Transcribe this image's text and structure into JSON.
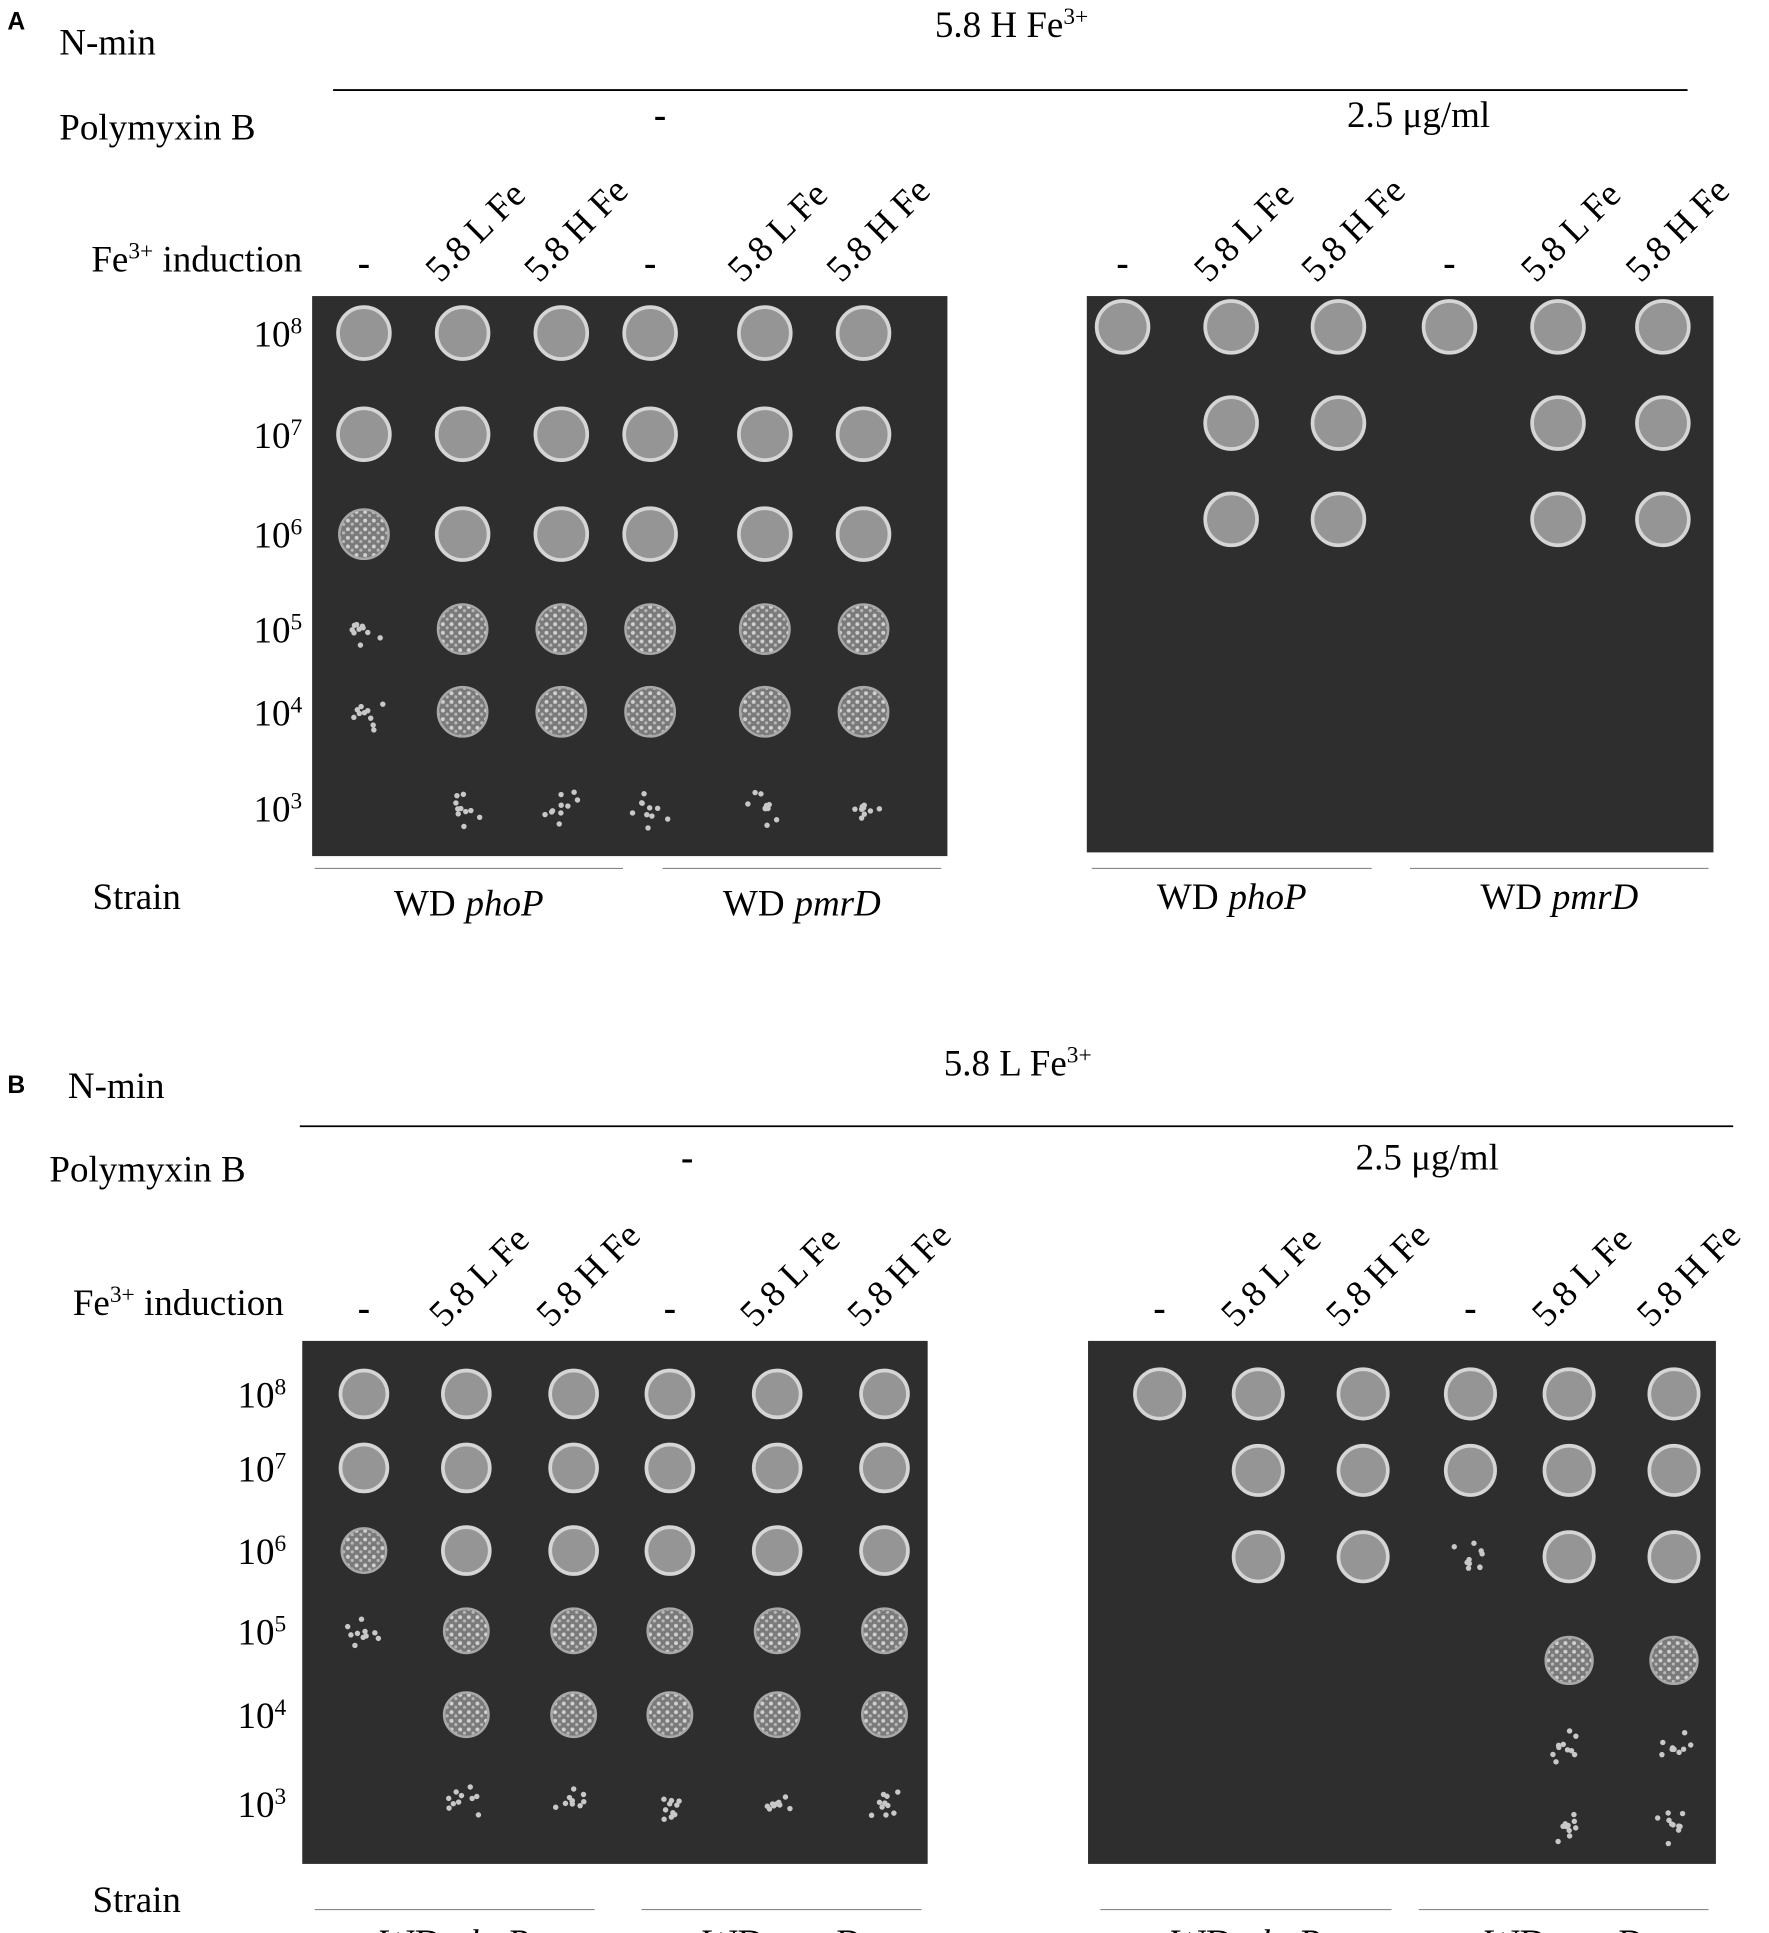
{
  "panels": [
    {
      "label": "A",
      "medium": "N-min",
      "condition": {
        "text": "5.8 H Fe",
        "sup": "3+"
      },
      "polymyxin_label": "Polymyxin B",
      "induction_label": {
        "text": "Fe",
        "sup": "3+",
        "rest": " induction"
      },
      "dilutions": [
        {
          "base": "10",
          "exp": "8"
        },
        {
          "base": "10",
          "exp": "7"
        },
        {
          "base": "10",
          "exp": "6"
        },
        {
          "base": "10",
          "exp": "5"
        },
        {
          "base": "10",
          "exp": "4"
        },
        {
          "base": "10",
          "exp": "3"
        }
      ],
      "strain_label": "Strain",
      "plates": [
        {
          "polymyxin": "-",
          "columns": [
            "-",
            "5.8 L Fe",
            "5.8 H Fe",
            "-",
            "5.8 L Fe",
            "5.8 H Fe"
          ],
          "strains": [
            {
              "prefix": "WD",
              "gene": "phoP"
            },
            {
              "prefix": "WD",
              "gene": "pmrD"
            }
          ]
        },
        {
          "polymyxin": "2.5 μg/ml",
          "columns": [
            "-",
            "5.8 L Fe",
            "5.8 H Fe",
            "-",
            "5.8 L Fe",
            "5.8 H Fe"
          ],
          "strains": [
            {
              "prefix": "WD",
              "gene": "phoP"
            },
            {
              "prefix": "WD",
              "gene": "pmrD"
            }
          ]
        }
      ]
    },
    {
      "label": "B",
      "medium": "N-min",
      "condition": {
        "text": "5.8 L Fe",
        "sup": "3+"
      },
      "polymyxin_label": "Polymyxin B",
      "induction_label": {
        "text": "Fe",
        "sup": "3+",
        "rest": " induction"
      },
      "dilutions": [
        {
          "base": "10",
          "exp": "8"
        },
        {
          "base": "10",
          "exp": "7"
        },
        {
          "base": "10",
          "exp": "6"
        },
        {
          "base": "10",
          "exp": "5"
        },
        {
          "base": "10",
          "exp": "4"
        },
        {
          "base": "10",
          "exp": "3"
        }
      ],
      "strain_label": "Strain",
      "plates": [
        {
          "polymyxin": "-",
          "columns": [
            "-",
            "5.8 L Fe",
            "5.8 H Fe",
            "-",
            "5.8 L Fe",
            "5.8 H Fe"
          ],
          "strains": [
            {
              "prefix": "WD",
              "gene": "phoP"
            },
            {
              "prefix": "WD",
              "gene": "pmrD"
            }
          ]
        },
        {
          "polymyxin": "2.5 μg/ml",
          "columns": [
            "-",
            "5.8 L Fe",
            "5.8 H Fe",
            "-",
            "5.8 L Fe",
            "5.8 H Fe"
          ],
          "strains": [
            {
              "prefix": "WD",
              "gene": "phoP"
            },
            {
              "prefix": "WD",
              "gene": "pmrD"
            }
          ]
        }
      ]
    }
  ]
}
